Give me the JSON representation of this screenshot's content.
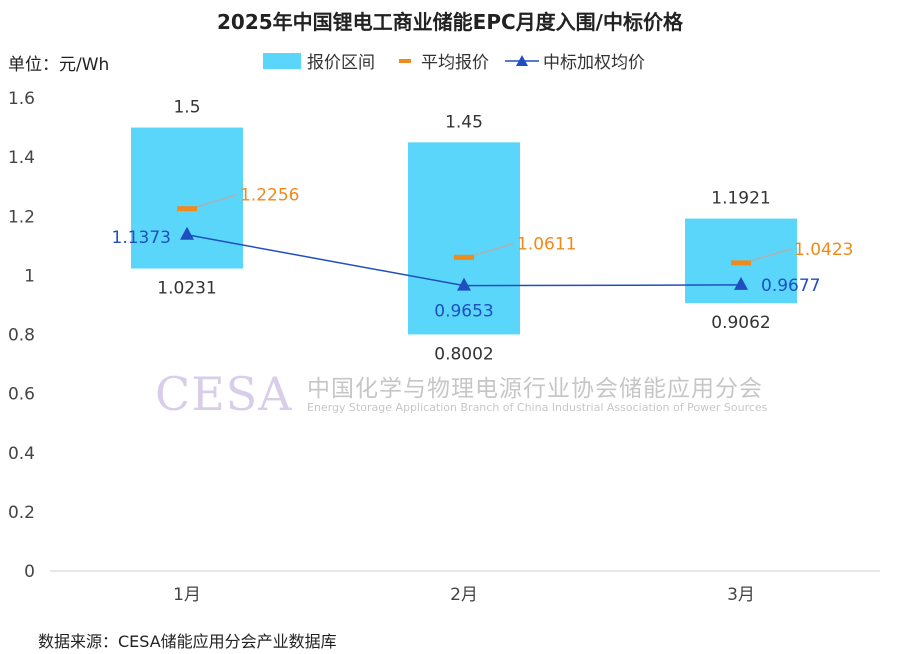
{
  "title": "2025年中国锂电工商业储能EPC月度入围/中标价格",
  "unit": "单位：元/Wh",
  "source": "数据来源：CESA储能应用分会产业数据库",
  "legend": {
    "range": "报价区间",
    "avg": "平均报价",
    "weighted": "中标加权均价"
  },
  "watermark": {
    "logo": "CESA",
    "cn": "中国化学与物理电源行业协会储能应用分会",
    "en": "Energy Storage Application Branch of China Industrial Association of Power Sources"
  },
  "colors": {
    "range_fill": "#5bd6fb",
    "avg": "#f08a1c",
    "weighted": "#1f4fbf"
  },
  "chart_data": {
    "type": "bar",
    "categories": [
      "1月",
      "2月",
      "3月"
    ],
    "ylim": [
      0,
      1.6
    ],
    "yticks": [
      "0",
      "0.2",
      "0.4",
      "0.6",
      "0.8",
      "1",
      "1.2",
      "1.4",
      "1.6"
    ],
    "series": [
      {
        "name": "报价区间",
        "high": [
          1.5,
          1.45,
          1.1921
        ],
        "low": [
          1.0231,
          0.8002,
          0.9062
        ],
        "high_labels": [
          "1.5",
          "1.45",
          "1.1921"
        ],
        "low_labels": [
          "1.0231",
          "0.8002",
          "0.9062"
        ]
      },
      {
        "name": "平均报价",
        "values": [
          1.2256,
          1.0611,
          1.0423
        ],
        "labels": [
          "1.2256",
          "1.0611",
          "1.0423"
        ]
      },
      {
        "name": "中标加权均价",
        "values": [
          1.1373,
          0.9653,
          0.9677
        ],
        "labels": [
          "1.1373",
          "0.9653",
          "0.9677"
        ]
      }
    ]
  }
}
